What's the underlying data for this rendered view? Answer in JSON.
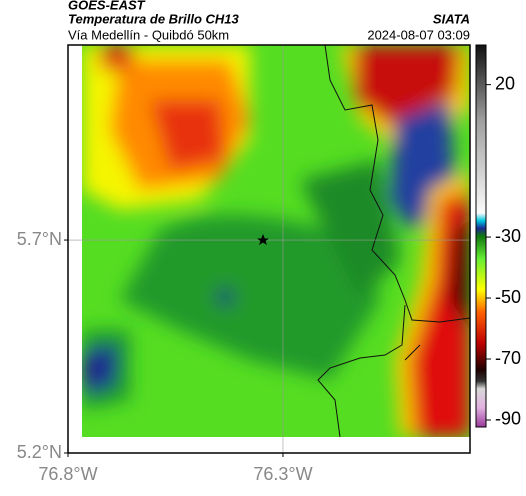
{
  "header": {
    "source": "GOES-EAST",
    "title": "Temperatura de Brillo CH13",
    "org": "SIATA",
    "subtitle": "Vía Medellín - Quibdó 50km",
    "timestamp": "2024-08-07 03:09"
  },
  "map": {
    "xlim": [
      -76.8,
      -75.865
    ],
    "ylim": [
      5.2,
      6.158
    ],
    "xticks": [
      {
        "value": -76.8,
        "label": "76.8°W"
      },
      {
        "value": -76.3,
        "label": "76.3°W"
      }
    ],
    "yticks": [
      {
        "value": 5.2,
        "label": "5.2°N"
      },
      {
        "value": 5.7,
        "label": "5.7°N"
      }
    ],
    "grid": true
  },
  "colorbar": {
    "clim": [
      -92.3,
      33
    ],
    "ticks": [
      20,
      -30,
      -50,
      -70,
      -90
    ]
  }
}
